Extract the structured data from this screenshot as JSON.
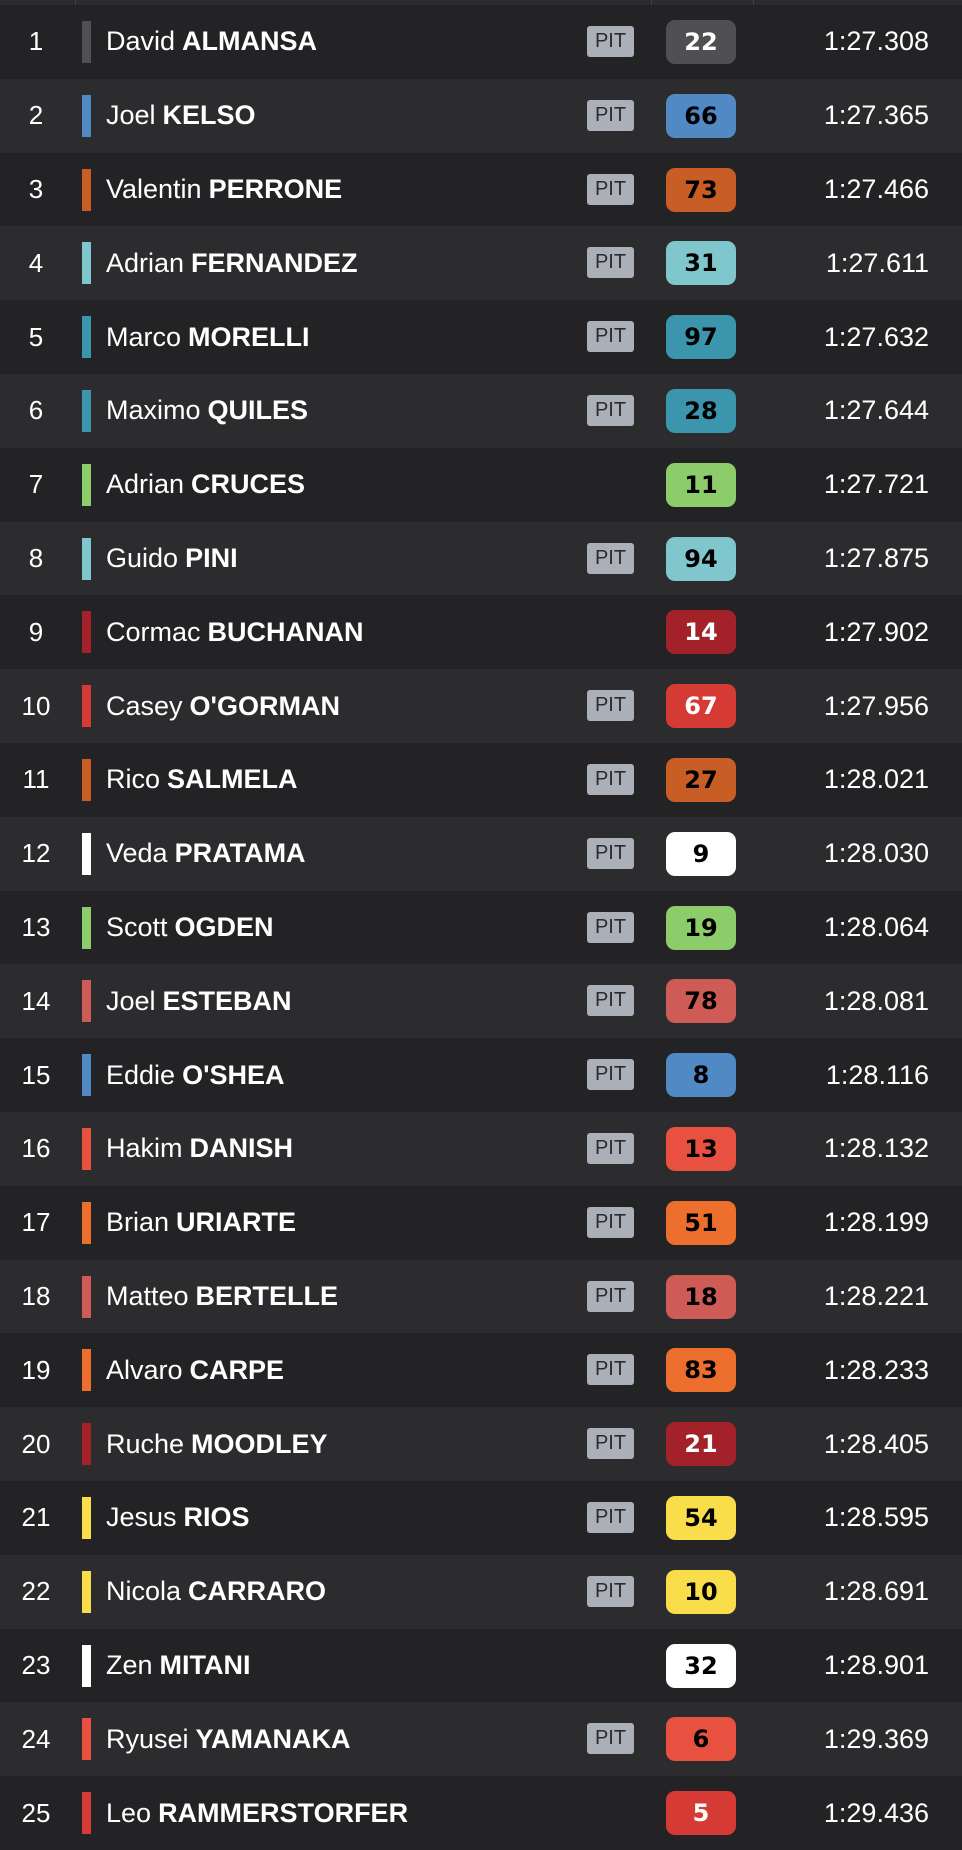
{
  "pit_label": "PIT",
  "rows": [
    {
      "pos": "1",
      "first": "David",
      "last": "ALMANSA",
      "pit": true,
      "number": "22",
      "color": "#505053",
      "text_color": "#ffffff",
      "time": "1:27.308"
    },
    {
      "pos": "2",
      "first": "Joel",
      "last": "KELSO",
      "pit": true,
      "number": "66",
      "color": "#5089c4",
      "text_color": "#000000",
      "time": "1:27.365"
    },
    {
      "pos": "3",
      "first": "Valentin",
      "last": "PERRONE",
      "pit": true,
      "number": "73",
      "color": "#c85d25",
      "text_color": "#000000",
      "time": "1:27.466"
    },
    {
      "pos": "4",
      "first": "Adrian",
      "last": "FERNANDEZ",
      "pit": true,
      "number": "31",
      "color": "#7fc7cc",
      "text_color": "#000000",
      "time": "1:27.611"
    },
    {
      "pos": "5",
      "first": "Marco",
      "last": "MORELLI",
      "pit": true,
      "number": "97",
      "color": "#3a95ad",
      "text_color": "#000000",
      "time": "1:27.632"
    },
    {
      "pos": "6",
      "first": "Maximo",
      "last": "QUILES",
      "pit": true,
      "number": "28",
      "color": "#3a95ad",
      "text_color": "#000000",
      "time": "1:27.644"
    },
    {
      "pos": "7",
      "first": "Adrian",
      "last": "CRUCES",
      "pit": false,
      "number": "11",
      "color": "#8ccc6a",
      "text_color": "#000000",
      "time": "1:27.721"
    },
    {
      "pos": "8",
      "first": "Guido",
      "last": "PINI",
      "pit": true,
      "number": "94",
      "color": "#7fc7cc",
      "text_color": "#000000",
      "time": "1:27.875"
    },
    {
      "pos": "9",
      "first": "Cormac",
      "last": "BUCHANAN",
      "pit": false,
      "number": "14",
      "color": "#a3222a",
      "text_color": "#ffffff",
      "time": "1:27.902"
    },
    {
      "pos": "10",
      "first": "Casey",
      "last": "O'GORMAN",
      "pit": true,
      "number": "67",
      "color": "#d63a35",
      "text_color": "#ffffff",
      "time": "1:27.956"
    },
    {
      "pos": "11",
      "first": "Rico",
      "last": "SALMELA",
      "pit": true,
      "number": "27",
      "color": "#c85d25",
      "text_color": "#000000",
      "time": "1:28.021"
    },
    {
      "pos": "12",
      "first": "Veda",
      "last": "PRATAMA",
      "pit": true,
      "number": "9",
      "color": "#ffffff",
      "text_color": "#000000",
      "time": "1:28.030"
    },
    {
      "pos": "13",
      "first": "Scott",
      "last": "OGDEN",
      "pit": true,
      "number": "19",
      "color": "#8ccc6a",
      "text_color": "#000000",
      "time": "1:28.064"
    },
    {
      "pos": "14",
      "first": "Joel",
      "last": "ESTEBAN",
      "pit": true,
      "number": "78",
      "color": "#cf5b56",
      "text_color": "#000000",
      "time": "1:28.081"
    },
    {
      "pos": "15",
      "first": "Eddie",
      "last": "O'SHEA",
      "pit": true,
      "number": "8",
      "color": "#5089c4",
      "text_color": "#000000",
      "time": "1:28.116"
    },
    {
      "pos": "16",
      "first": "Hakim",
      "last": "DANISH",
      "pit": true,
      "number": "13",
      "color": "#e85140",
      "text_color": "#000000",
      "time": "1:28.132"
    },
    {
      "pos": "17",
      "first": "Brian",
      "last": "URIARTE",
      "pit": true,
      "number": "51",
      "color": "#ec6f2d",
      "text_color": "#000000",
      "time": "1:28.199"
    },
    {
      "pos": "18",
      "first": "Matteo",
      "last": "BERTELLE",
      "pit": true,
      "number": "18",
      "color": "#cf5b56",
      "text_color": "#000000",
      "time": "1:28.221"
    },
    {
      "pos": "19",
      "first": "Alvaro",
      "last": "CARPE",
      "pit": true,
      "number": "83",
      "color": "#ec6f2d",
      "text_color": "#000000",
      "time": "1:28.233"
    },
    {
      "pos": "20",
      "first": "Ruche",
      "last": "MOODLEY",
      "pit": true,
      "number": "21",
      "color": "#a3222a",
      "text_color": "#ffffff",
      "time": "1:28.405"
    },
    {
      "pos": "21",
      "first": "Jesus",
      "last": "RIOS",
      "pit": true,
      "number": "54",
      "color": "#f9dd4a",
      "text_color": "#000000",
      "time": "1:28.595"
    },
    {
      "pos": "22",
      "first": "Nicola",
      "last": "CARRARO",
      "pit": true,
      "number": "10",
      "color": "#f9dd4a",
      "text_color": "#000000",
      "time": "1:28.691"
    },
    {
      "pos": "23",
      "first": "Zen",
      "last": "MITANI",
      "pit": false,
      "number": "32",
      "color": "#ffffff",
      "text_color": "#000000",
      "time": "1:28.901"
    },
    {
      "pos": "24",
      "first": "Ryusei",
      "last": "YAMANAKA",
      "pit": true,
      "number": "6",
      "color": "#e85140",
      "text_color": "#000000",
      "time": "1:29.369"
    },
    {
      "pos": "25",
      "first": "Leo",
      "last": "RAMMERSTORFER",
      "pit": false,
      "number": "5",
      "color": "#d63a35",
      "text_color": "#ffffff",
      "time": "1:29.436"
    }
  ]
}
